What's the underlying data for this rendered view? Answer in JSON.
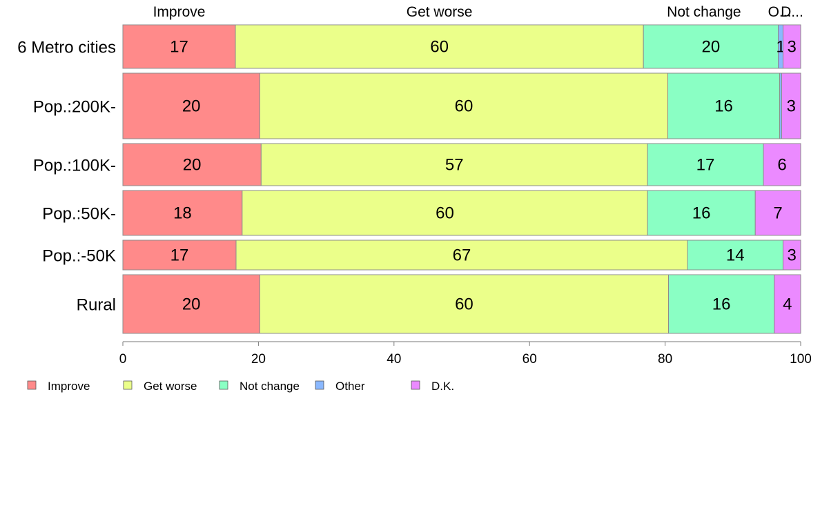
{
  "chart_data": {
    "type": "bar",
    "orientation": "horizontal",
    "stacked": true,
    "categories": [
      "6 Metro cities",
      "Pop.:200K-",
      "Pop.:100K-",
      "Pop.:50K-",
      "Pop.:-50K",
      "Rural"
    ],
    "series": [
      {
        "name": "Improve",
        "color": "#FF8A8A",
        "values": [
          16.6,
          20.2,
          20.4,
          17.6,
          16.7,
          20.2
        ]
      },
      {
        "name": "Get worse",
        "color": "#EBFF8A",
        "values": [
          60.2,
          60.2,
          57.0,
          59.8,
          66.6,
          60.3
        ]
      },
      {
        "name": "Not change",
        "color": "#8AFFC4",
        "values": [
          19.9,
          16.5,
          17.1,
          15.9,
          14.1,
          15.6
        ]
      },
      {
        "name": "Other",
        "color": "#8AB8FF",
        "values": [
          0.7,
          0.3,
          0.0,
          0.0,
          0.0,
          0.0
        ]
      },
      {
        "name": "D.K.",
        "color": "#EB8AFF",
        "values": [
          2.6,
          2.8,
          5.5,
          6.7,
          2.6,
          3.9
        ]
      }
    ],
    "bar_labels": [
      [
        "17",
        "60",
        "20",
        "1",
        "3"
      ],
      [
        "20",
        "60",
        "16",
        "",
        "3"
      ],
      [
        "20",
        "57",
        "17",
        "",
        "6"
      ],
      [
        "18",
        "60",
        "16",
        "",
        "7"
      ],
      [
        "17",
        "67",
        "14",
        "",
        "3"
      ],
      [
        "20",
        "60",
        "16",
        "",
        "4"
      ]
    ],
    "top_labels": [
      "Improve",
      "Get worse",
      "Not change",
      "O...",
      "D..."
    ],
    "xlim": [
      0,
      100
    ],
    "x_ticks": [
      "0",
      "20",
      "40",
      "60",
      "80",
      "100"
    ],
    "legend_position": "bottom-left",
    "grid": false
  }
}
